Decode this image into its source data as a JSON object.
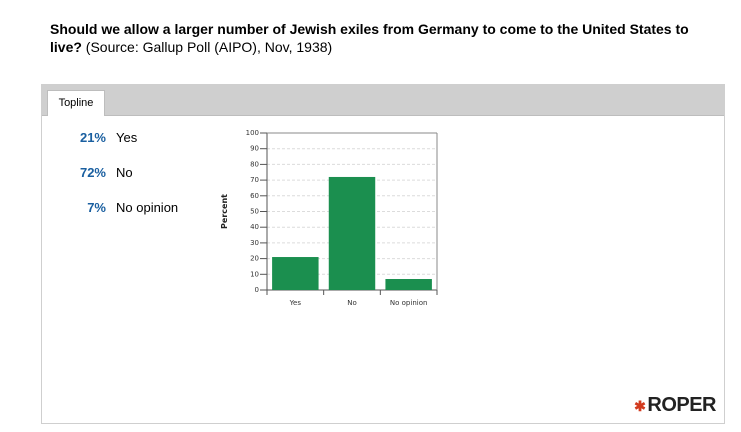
{
  "question": {
    "text": "Should we allow a larger number of Jewish exiles from Germany to come to the United States to live?",
    "source": "(Source: Gallup Poll (AIPO), Nov, 1938)"
  },
  "tabs": [
    {
      "label": "Topline"
    }
  ],
  "results": [
    {
      "percent": "21%",
      "label": "Yes"
    },
    {
      "percent": "72%",
      "label": "No"
    },
    {
      "percent": "7%",
      "label": "No opinion"
    }
  ],
  "chart_data": {
    "type": "bar",
    "categories": [
      "Yes",
      "No",
      "No opinion"
    ],
    "values": [
      21,
      72,
      7
    ],
    "title": "",
    "xlabel": "",
    "ylabel": "Percent",
    "ylim": [
      0,
      100
    ],
    "yticks": [
      0,
      10,
      20,
      30,
      40,
      50,
      60,
      70,
      80,
      90,
      100
    ],
    "grid": true,
    "bar_color": "#1b8f4f"
  },
  "logo": {
    "text": "ROPER"
  },
  "colors": {
    "accent": "#1a5fa0",
    "bar": "#1b8f4f",
    "tabbar": "#cfcfcf"
  }
}
